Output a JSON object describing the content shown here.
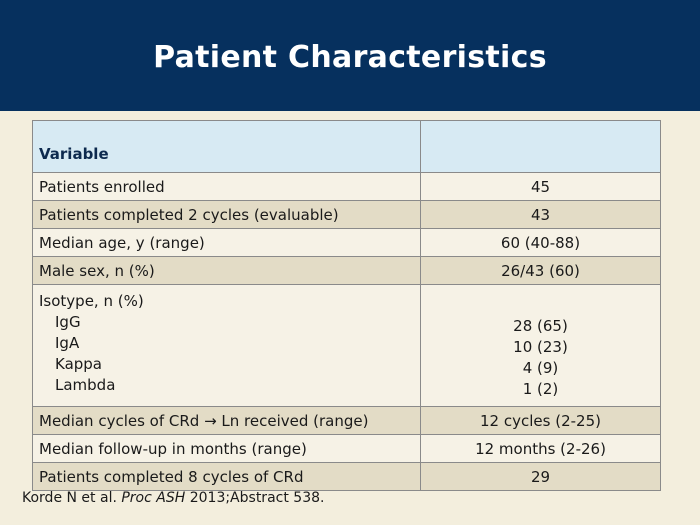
{
  "title": "Patient Characteristics",
  "table": {
    "header": [
      "Variable",
      ""
    ],
    "rows": [
      {
        "label": "Patients enrolled",
        "value": "45"
      },
      {
        "label": "Patients completed 2 cycles (evaluable)",
        "value": "43"
      },
      {
        "label": "Median age, y (range)",
        "value": "60 (40-88)"
      },
      {
        "label": "Male sex, n (%)",
        "value": "26/43 (60)"
      }
    ],
    "isotype": {
      "label": "Isotype, n (%)",
      "items": [
        {
          "label": "IgG",
          "value": "28 (65)"
        },
        {
          "label": "IgA",
          "value": "10 (23)"
        },
        {
          "label": "Kappa",
          "value": "4 (9)"
        },
        {
          "label": "Lambda",
          "value": "1 (2)"
        }
      ]
    },
    "rows_after": [
      {
        "label": "Median cycles of CRd → Ln received (range)",
        "value": "12 cycles (2-25)"
      },
      {
        "label": "Median follow-up in months (range)",
        "value": "12 months (2-26)"
      },
      {
        "label": "Patients completed 8 cycles of CRd",
        "value": "29"
      }
    ]
  },
  "footer": {
    "author": "Korde N et al. ",
    "journal": "Proc ASH",
    "rest": " 2013;Abstract 538."
  }
}
